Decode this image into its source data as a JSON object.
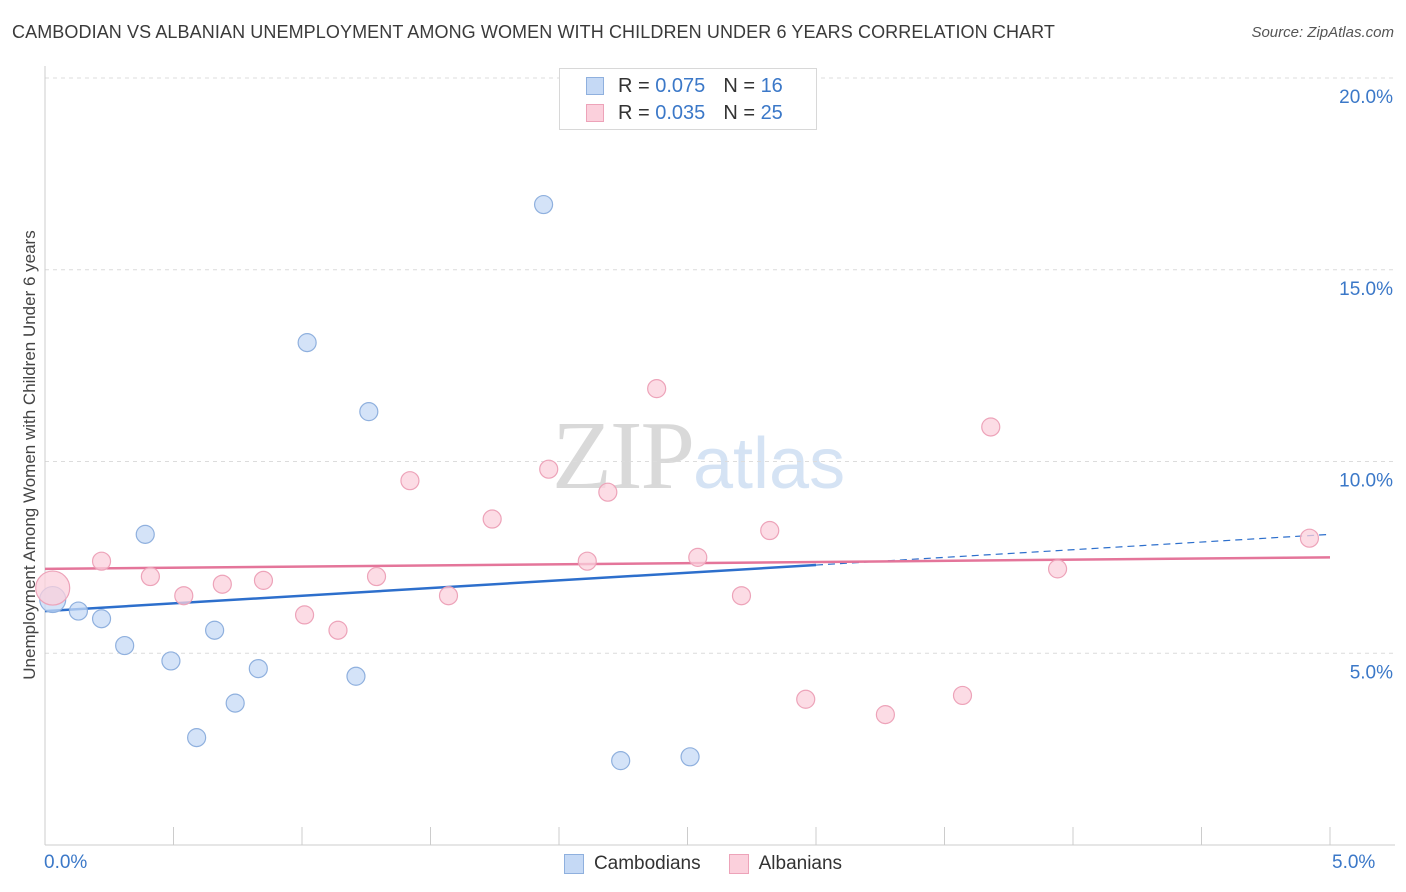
{
  "title": "CAMBODIAN VS ALBANIAN UNEMPLOYMENT AMONG WOMEN WITH CHILDREN UNDER 6 YEARS CORRELATION CHART",
  "source": "Source: ZipAtlas.com",
  "watermark": {
    "zip": "ZIP",
    "atlas": "atlas"
  },
  "legend_top": [
    {
      "r_label": "R =",
      "r_value": "0.075",
      "n_label": "N =",
      "n_value": "16",
      "color": "#c5d9f5"
    },
    {
      "r_label": "R =",
      "r_value": "0.035",
      "n_label": "N =",
      "n_value": "25",
      "color": "#fbd0dc"
    }
  ],
  "chart_data": {
    "type": "scatter",
    "xlabel": "",
    "ylabel": "Unemployment Among Women with Children Under 6 years",
    "xlim": [
      0,
      5
    ],
    "ylim": [
      0,
      20
    ],
    "x_tick_labels": [
      "0.0%",
      "5.0%"
    ],
    "y_ticks": [
      5,
      10,
      15,
      20
    ],
    "y_tick_labels": [
      "5.0%",
      "10.0%",
      "15.0%",
      "20.0%"
    ],
    "grid": true,
    "legend_position": "bottom",
    "series": [
      {
        "name": "Cambodians",
        "color": "#c5d9f5",
        "stroke": "#8fb0de",
        "line_color": "#2d6fcc",
        "points": [
          [
            0.03,
            6.4
          ],
          [
            0.13,
            6.1
          ],
          [
            0.22,
            5.9
          ],
          [
            0.31,
            5.2
          ],
          [
            0.39,
            8.1
          ],
          [
            0.49,
            4.8
          ],
          [
            0.59,
            2.8
          ],
          [
            0.66,
            5.6
          ],
          [
            0.74,
            3.7
          ],
          [
            0.83,
            4.6
          ],
          [
            1.02,
            13.1
          ],
          [
            1.21,
            4.4
          ],
          [
            1.26,
            11.3
          ],
          [
            1.94,
            16.7
          ],
          [
            2.24,
            2.2
          ],
          [
            2.51,
            2.3
          ]
        ],
        "trend": {
          "x": [
            0,
            3.0
          ],
          "y": [
            6.1,
            7.3
          ]
        },
        "trend_dashed": {
          "x": [
            3.0,
            5.0
          ],
          "y": [
            7.3,
            8.1
          ]
        }
      },
      {
        "name": "Albanians",
        "color": "#fbd0dc",
        "stroke": "#eda3b9",
        "line_color": "#e4759a",
        "points": [
          [
            0.03,
            6.7
          ],
          [
            0.22,
            7.4
          ],
          [
            0.41,
            7.0
          ],
          [
            0.54,
            6.5
          ],
          [
            0.69,
            6.8
          ],
          [
            0.85,
            6.9
          ],
          [
            1.01,
            6.0
          ],
          [
            1.14,
            5.6
          ],
          [
            1.29,
            7.0
          ],
          [
            1.42,
            9.5
          ],
          [
            1.57,
            6.5
          ],
          [
            1.74,
            8.5
          ],
          [
            1.96,
            9.8
          ],
          [
            2.11,
            7.4
          ],
          [
            2.19,
            9.2
          ],
          [
            2.38,
            11.9
          ],
          [
            2.54,
            7.5
          ],
          [
            2.71,
            6.5
          ],
          [
            2.82,
            8.2
          ],
          [
            2.96,
            3.8
          ],
          [
            3.27,
            3.4
          ],
          [
            3.57,
            3.9
          ],
          [
            3.68,
            10.9
          ],
          [
            3.94,
            7.2
          ],
          [
            4.92,
            8.0
          ]
        ],
        "trend": {
          "x": [
            0,
            5.0
          ],
          "y": [
            7.2,
            7.5
          ]
        }
      }
    ]
  }
}
